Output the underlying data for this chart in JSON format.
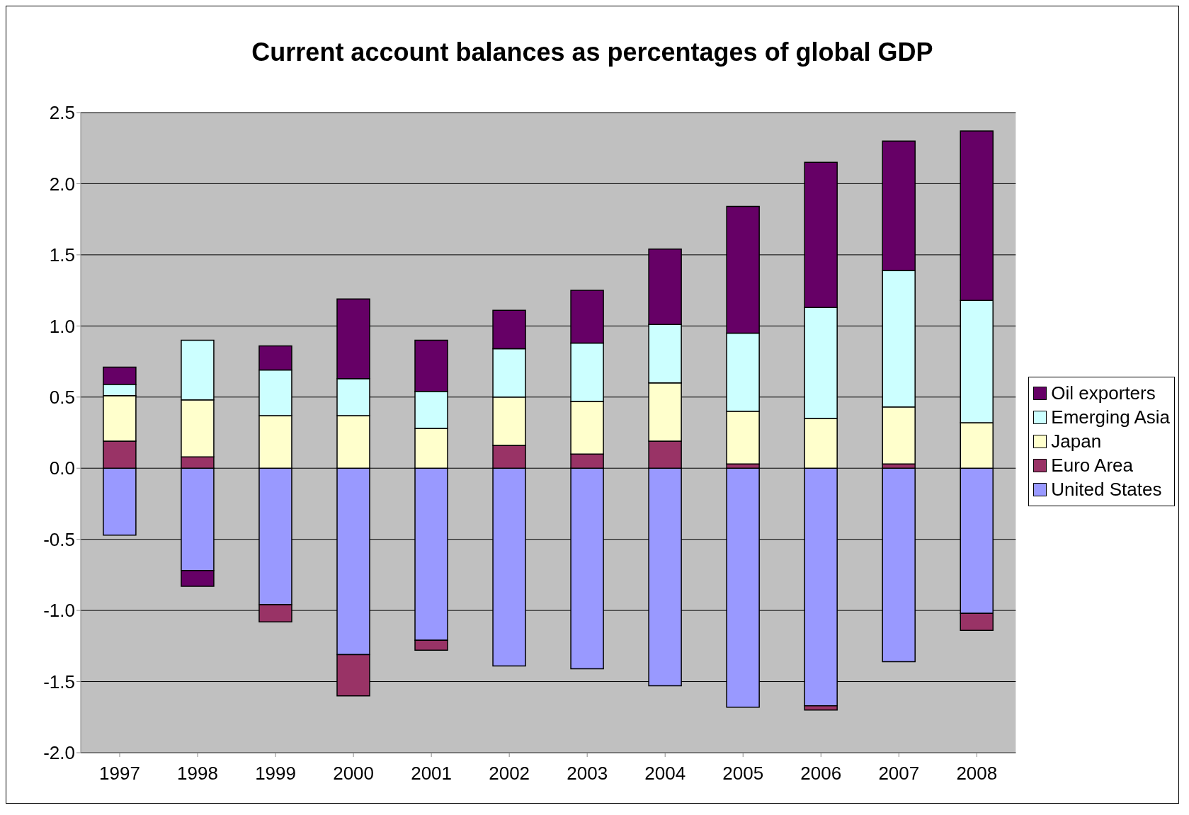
{
  "chart_data": {
    "type": "bar",
    "title": "Current account balances as percentages of global GDP",
    "stacked": true,
    "categories": [
      "1997",
      "1998",
      "1999",
      "2000",
      "2001",
      "2002",
      "2003",
      "2004",
      "2005",
      "2006",
      "2007",
      "2008"
    ],
    "series": [
      {
        "name": "United States",
        "color": "#9999ff",
        "values": [
          -0.47,
          -0.72,
          -0.96,
          -1.31,
          -1.21,
          -1.39,
          -1.41,
          -1.53,
          -1.68,
          -1.67,
          -1.36,
          -1.02
        ]
      },
      {
        "name": "Euro Area",
        "color": "#993366",
        "values": [
          0.19,
          0.08,
          -0.12,
          -0.29,
          -0.07,
          0.16,
          0.1,
          0.19,
          0.03,
          -0.03,
          0.03,
          -0.12
        ]
      },
      {
        "name": "Japan",
        "color": "#ffffcc",
        "values": [
          0.32,
          0.4,
          0.37,
          0.37,
          0.28,
          0.34,
          0.37,
          0.41,
          0.37,
          0.35,
          0.4,
          0.32
        ]
      },
      {
        "name": "Emerging Asia",
        "color": "#ccffff",
        "values": [
          0.08,
          0.42,
          0.32,
          0.26,
          0.26,
          0.34,
          0.41,
          0.41,
          0.55,
          0.78,
          0.96,
          0.86
        ]
      },
      {
        "name": "Oil exporters",
        "color": "#660066",
        "values": [
          0.12,
          -0.11,
          0.17,
          0.56,
          0.36,
          0.27,
          0.37,
          0.53,
          0.89,
          1.02,
          0.91,
          1.19
        ]
      }
    ],
    "ylim": [
      -2,
      2.5
    ],
    "yticks": [
      {
        "value": -2,
        "label": "-2.0"
      },
      {
        "value": -1.5,
        "label": "-1.5"
      },
      {
        "value": -1,
        "label": "-1.0"
      },
      {
        "value": -0.5,
        "label": "-0.5"
      },
      {
        "value": 0,
        "label": "0.0"
      },
      {
        "value": 0.5,
        "label": "0.5"
      },
      {
        "value": 1,
        "label": "1.0"
      },
      {
        "value": 1.5,
        "label": "1.5"
      },
      {
        "value": 2,
        "label": "2.0"
      },
      {
        "value": 2.5,
        "label": "2.5"
      }
    ],
    "grid": "y",
    "legend": "right"
  }
}
